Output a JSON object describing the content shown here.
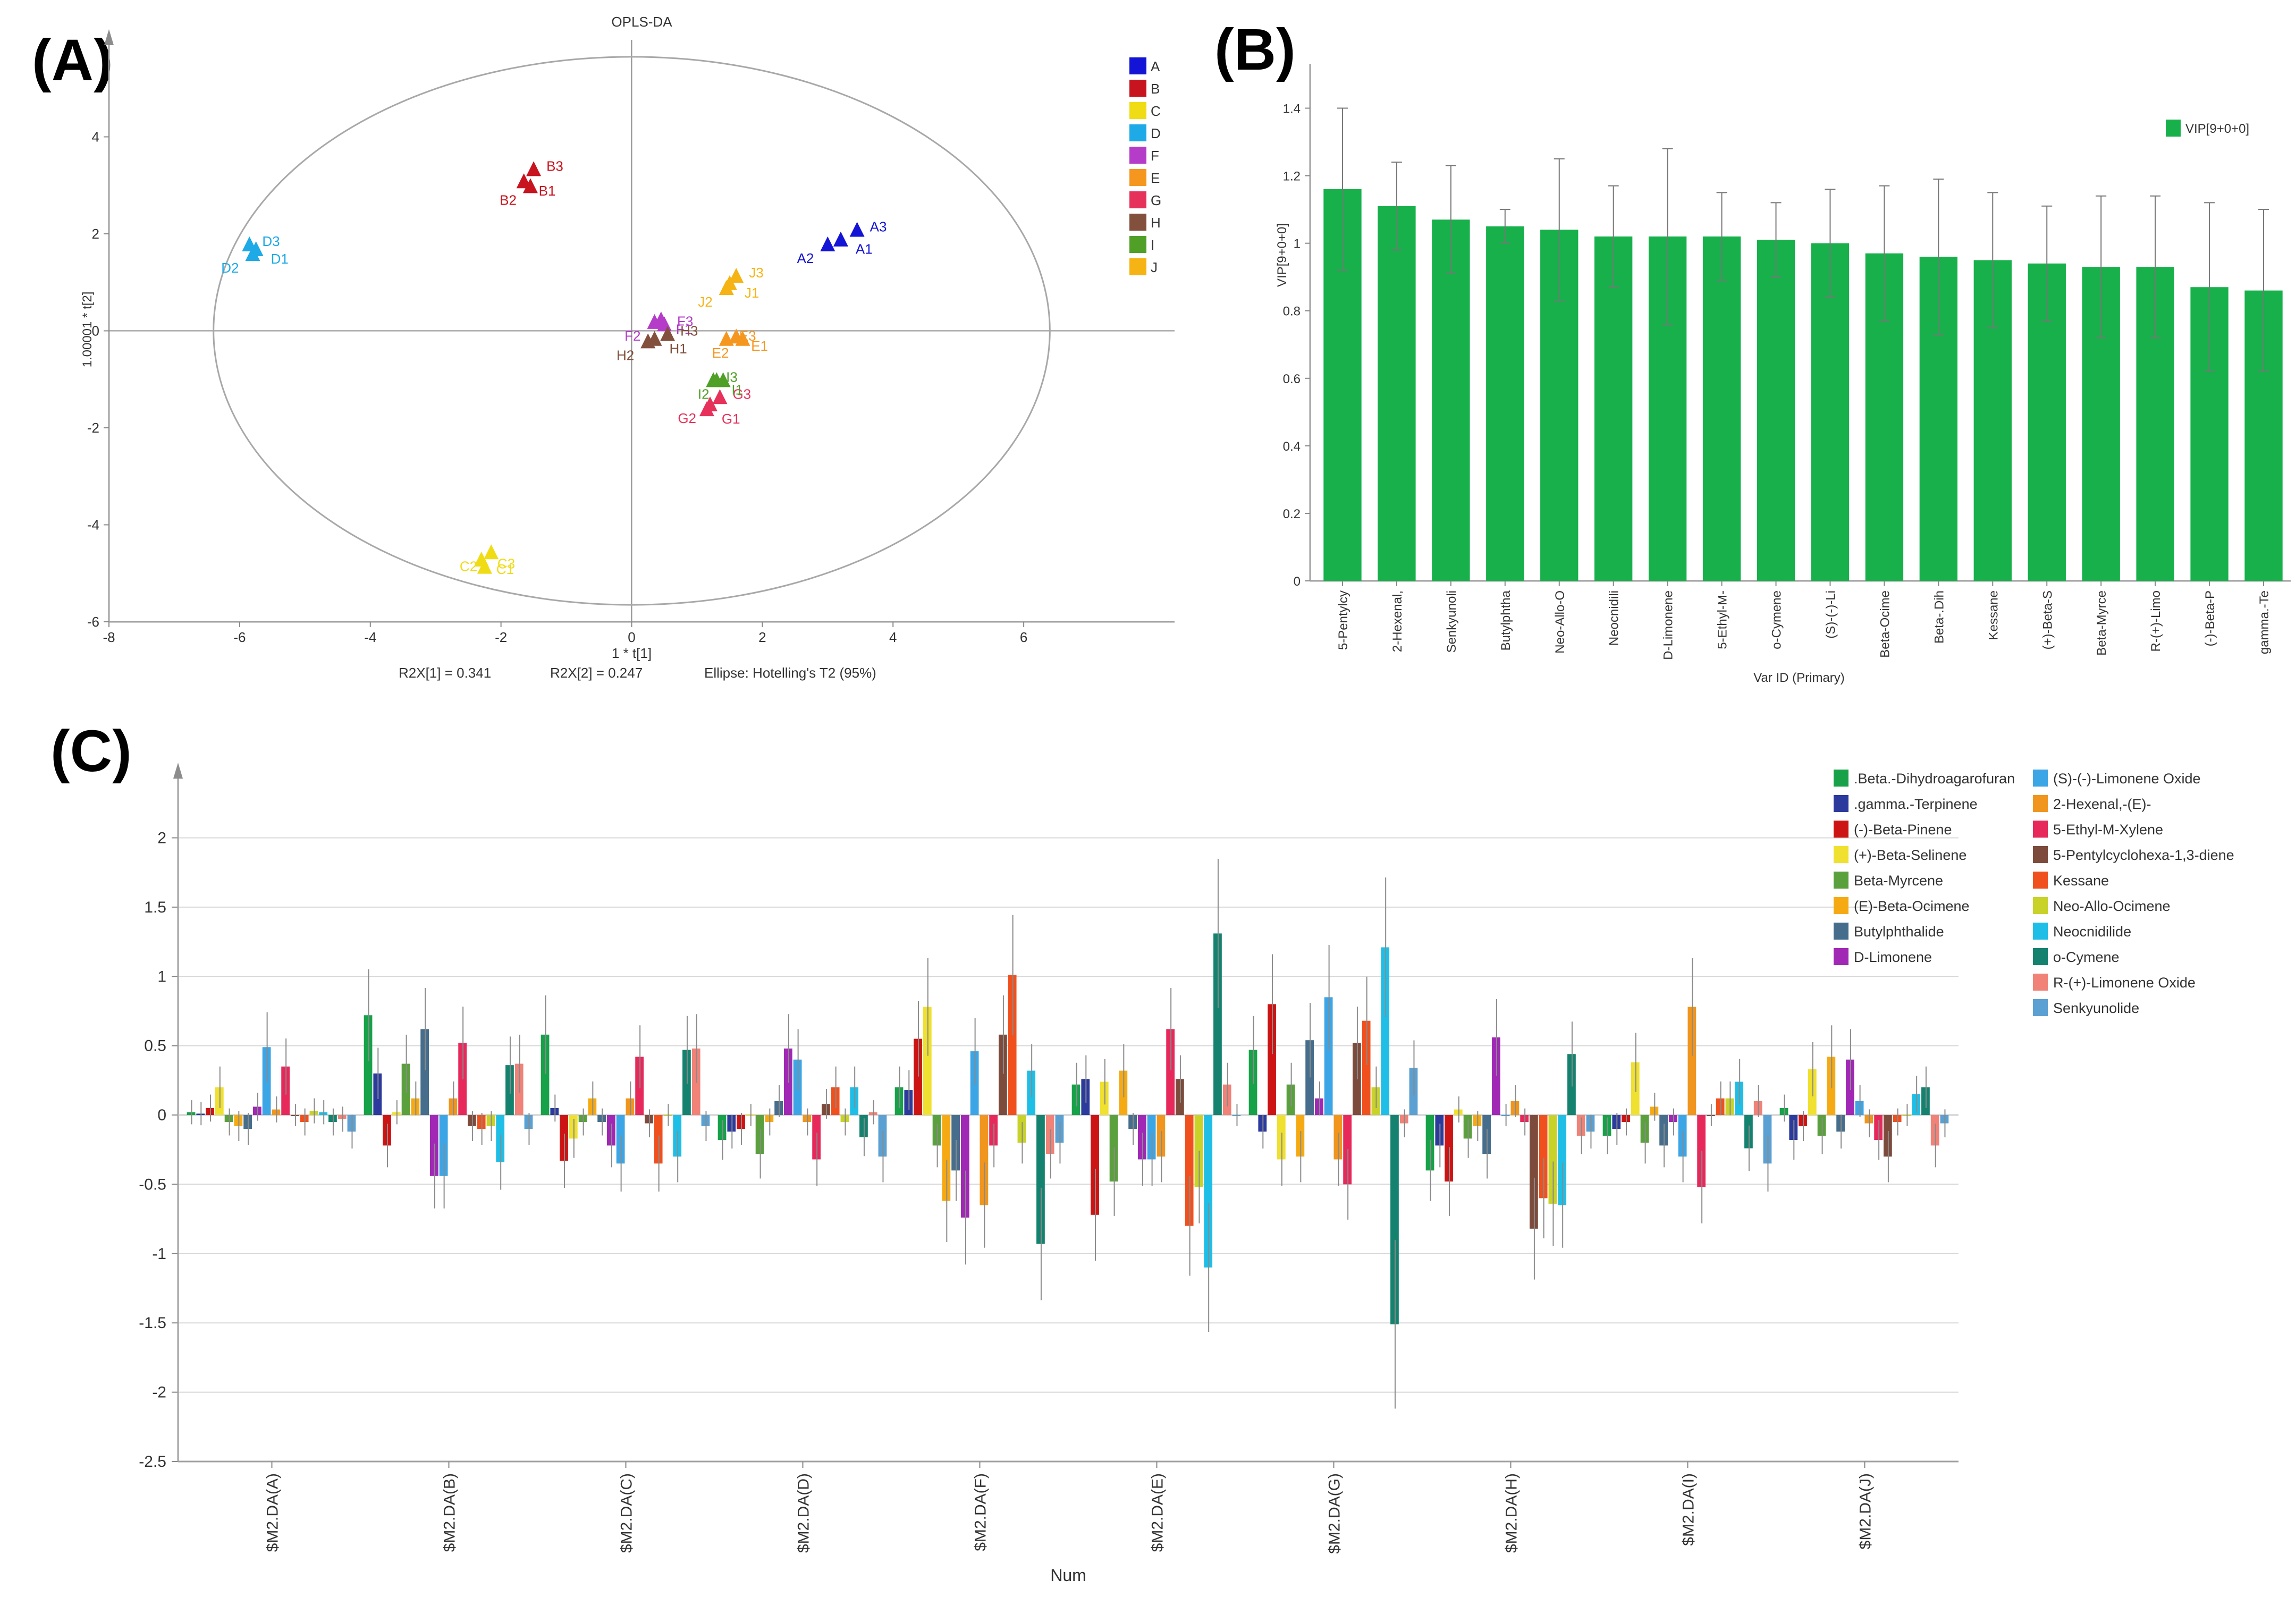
{
  "panels": {
    "a": "(A)",
    "b": "(B)",
    "c": "(C)"
  },
  "chart_data": [
    {
      "id": "A",
      "type": "scatter",
      "title": "OPLS-DA",
      "xlabel": "1 * t[1]",
      "ylabel": "1.00001 * t[2]",
      "xlim": [
        -8,
        8
      ],
      "ylim": [
        -6,
        6
      ],
      "xticks": [
        "-8",
        "-6",
        "-4",
        "-2",
        "0",
        "2",
        "4",
        "6"
      ],
      "yticks": [
        "-6",
        "-4",
        "-2",
        "0",
        "2",
        "4"
      ],
      "footer": {
        "r2x1": "R2X[1] = 0.341",
        "r2x2": "R2X[2] = 0.247",
        "ellipse": "Ellipse: Hotelling's T2 (95%)"
      },
      "ellipse": {
        "cx": 0,
        "cy": 0,
        "rx": 6.4,
        "ry": 5.65
      },
      "groups": [
        {
          "name": "A",
          "color": "#1414d6",
          "points": [
            {
              "label": "A1",
              "x": 3.2,
              "y": 1.85
            },
            {
              "label": "A2",
              "x": 3.0,
              "y": 1.75
            },
            {
              "label": "A3",
              "x": 3.45,
              "y": 2.05
            }
          ]
        },
        {
          "name": "B",
          "color": "#c8141e",
          "points": [
            {
              "label": "B1",
              "x": -1.65,
              "y": 3.05
            },
            {
              "label": "B2",
              "x": -1.55,
              "y": 2.95
            },
            {
              "label": "B3",
              "x": -1.5,
              "y": 3.3
            }
          ]
        },
        {
          "name": "C",
          "color": "#f0dc14",
          "points": [
            {
              "label": "C1",
              "x": -2.3,
              "y": -4.75
            },
            {
              "label": "C2",
              "x": -2.15,
              "y": -4.6
            },
            {
              "label": "C3",
              "x": -2.25,
              "y": -4.9
            }
          ]
        },
        {
          "name": "D",
          "color": "#1eaae6",
          "points": [
            {
              "label": "D1",
              "x": -5.75,
              "y": 1.65
            },
            {
              "label": "D2",
              "x": -5.8,
              "y": 1.55
            },
            {
              "label": "D3",
              "x": -5.85,
              "y": 1.75
            }
          ]
        },
        {
          "name": "F",
          "color": "#b43cc8",
          "points": [
            {
              "label": "F1",
              "x": 0.45,
              "y": 0.2
            },
            {
              "label": "F2",
              "x": 0.35,
              "y": 0.15
            },
            {
              "label": "F3",
              "x": 0.5,
              "y": 0.1
            }
          ]
        },
        {
          "name": "E",
          "color": "#f5961e",
          "points": [
            {
              "label": "E1",
              "x": 1.6,
              "y": -0.15
            },
            {
              "label": "E2",
              "x": 1.7,
              "y": -0.2
            },
            {
              "label": "E3",
              "x": 1.45,
              "y": -0.2
            }
          ]
        },
        {
          "name": "G",
          "color": "#e6325a",
          "points": [
            {
              "label": "G1",
              "x": 1.15,
              "y": -1.65
            },
            {
              "label": "G2",
              "x": 1.2,
              "y": -1.55
            },
            {
              "label": "G3",
              "x": 1.35,
              "y": -1.4
            }
          ]
        },
        {
          "name": "H",
          "color": "#82503c",
          "points": [
            {
              "label": "H1",
              "x": 0.35,
              "y": -0.2
            },
            {
              "label": "H2",
              "x": 0.25,
              "y": -0.25
            },
            {
              "label": "H3",
              "x": 0.55,
              "y": -0.1
            }
          ]
        },
        {
          "name": "I",
          "color": "#50a028",
          "points": [
            {
              "label": "I1",
              "x": 1.3,
              "y": -1.05
            },
            {
              "label": "I2",
              "x": 1.4,
              "y": -1.05
            },
            {
              "label": "I3",
              "x": 1.25,
              "y": -1.05
            }
          ]
        },
        {
          "name": "J",
          "color": "#f5b414",
          "points": [
            {
              "label": "J1",
              "x": 1.5,
              "y": 0.95
            },
            {
              "label": "J2",
              "x": 1.45,
              "y": 0.85
            },
            {
              "label": "J3",
              "x": 1.6,
              "y": 1.1
            }
          ]
        }
      ]
    },
    {
      "id": "B",
      "type": "bar",
      "xlabel": "Var ID (Primary)",
      "ylabel": "VIP[9+0+0]",
      "legend": "VIP[9+0+0]",
      "ylim": [
        0,
        1.5
      ],
      "yticks": [
        "0",
        "0.2",
        "0.4",
        "0.6",
        "0.8",
        "1",
        "1.2",
        "1.4"
      ],
      "color": "#17b04b",
      "categories": [
        "5-Pentylcy",
        "2-Hexenal,",
        "Senkyunoli",
        "Butylphtha",
        "Neo-Allo-O",
        "Neocnidili",
        "D-Limonene",
        "5-Ethyl-M-",
        "o-Cymene",
        "(S)-(-)-Li",
        "Beta-Ocime",
        "Beta-.Dih",
        "Kessane",
        "(+)-Beta-S",
        "Beta-Myrce",
        "R-(+)-Limo",
        "(-)-Beta-P",
        "gamma.-Te"
      ],
      "values": [
        1.16,
        1.11,
        1.07,
        1.05,
        1.04,
        1.02,
        1.02,
        1.02,
        1.01,
        1.0,
        0.97,
        0.96,
        0.95,
        0.94,
        0.93,
        0.93,
        0.87,
        0.86
      ],
      "errors": [
        0.24,
        0.13,
        0.16,
        0.05,
        0.21,
        0.15,
        0.26,
        0.13,
        0.11,
        0.16,
        0.2,
        0.23,
        0.2,
        0.17,
        0.21,
        0.21,
        0.25,
        0.24
      ]
    },
    {
      "id": "C",
      "type": "bar",
      "xlabel": "Num",
      "ylim": [
        -2.5,
        2.5
      ],
      "yticks": [
        "-2.5",
        "-2",
        "-1.5",
        "-1",
        "-0.5",
        "0",
        "0.5",
        "1",
        "1.5",
        "2"
      ],
      "categories": [
        "$M2.DA(A)",
        "$M2.DA(B)",
        "$M2.DA(C)",
        "$M2.DA(D)",
        "$M2.DA(F)",
        "$M2.DA(E)",
        "$M2.DA(G)",
        "$M2.DA(H)",
        "$M2.DA(I)",
        "$M2.DA(J)"
      ],
      "series": [
        {
          "name": ".Beta.-Dihydroagarofuran",
          "color": "#17a24a",
          "values": [
            0.02,
            0.72,
            0.58,
            -0.18,
            0.2,
            0.22,
            0.47,
            -0.4,
            -0.15,
            0.05
          ]
        },
        {
          "name": ".gamma.-Terpinene",
          "color": "#2b3a9c",
          "values": [
            0.01,
            0.3,
            0.05,
            -0.12,
            0.18,
            0.26,
            -0.12,
            -0.22,
            -0.1,
            -0.18
          ]
        },
        {
          "name": "(-)-Beta-Pinene",
          "color": "#cc1414",
          "values": [
            0.05,
            -0.22,
            -0.33,
            -0.1,
            0.55,
            -0.72,
            0.8,
            -0.48,
            -0.05,
            -0.08
          ]
        },
        {
          "name": "(+)-Beta-Selinene",
          "color": "#f0e030",
          "values": [
            0.2,
            0.02,
            -0.17,
            0.0,
            0.78,
            0.24,
            -0.32,
            0.04,
            0.38,
            0.33
          ]
        },
        {
          "name": "Beta-Myrcene",
          "color": "#5aa03c",
          "values": [
            -0.05,
            0.37,
            -0.05,
            -0.28,
            -0.22,
            -0.48,
            0.22,
            -0.17,
            -0.2,
            -0.15
          ]
        },
        {
          "name": "(E)-Beta-Ocimene",
          "color": "#f5aa14",
          "values": [
            -0.08,
            0.12,
            0.12,
            -0.05,
            -0.62,
            0.32,
            -0.3,
            -0.08,
            0.06,
            0.42
          ]
        },
        {
          "name": "Butylphthalide",
          "color": "#466e8c",
          "values": [
            -0.1,
            0.62,
            -0.05,
            0.1,
            -0.4,
            -0.1,
            0.54,
            -0.28,
            -0.22,
            -0.12
          ]
        },
        {
          "name": "D-Limonene",
          "color": "#a028b4",
          "values": [
            0.06,
            -0.44,
            -0.22,
            0.48,
            -0.74,
            -0.32,
            0.12,
            0.56,
            -0.05,
            0.4
          ]
        },
        {
          "name": "(S)-(-)-Limonene Oxide",
          "color": "#3ca5e6",
          "values": [
            0.49,
            -0.44,
            -0.35,
            0.4,
            0.46,
            -0.32,
            0.85,
            0.0,
            -0.3,
            0.1
          ]
        },
        {
          "name": "2-Hexenal,-(E)-",
          "color": "#f0961e",
          "values": [
            0.04,
            0.12,
            0.12,
            -0.05,
            -0.65,
            -0.3,
            -0.32,
            0.1,
            0.78,
            -0.06
          ]
        },
        {
          "name": "5-Ethyl-M-Xylene",
          "color": "#e6285a",
          "values": [
            0.35,
            0.52,
            0.42,
            -0.32,
            -0.22,
            0.62,
            -0.5,
            -0.05,
            -0.52,
            -0.18
          ]
        },
        {
          "name": "5-Pentylcyclohexa-1,3-diene",
          "color": "#7d4b3c",
          "values": [
            0.0,
            -0.08,
            -0.06,
            0.08,
            0.58,
            0.26,
            0.52,
            -0.82,
            0.0,
            -0.3
          ]
        },
        {
          "name": "Kessane",
          "color": "#f0501e",
          "values": [
            -0.05,
            -0.1,
            -0.35,
            0.2,
            1.01,
            -0.8,
            0.68,
            -0.6,
            0.12,
            -0.05
          ]
        },
        {
          "name": "Neo-Allo-Ocimene",
          "color": "#c8d228",
          "values": [
            0.03,
            -0.08,
            0.0,
            -0.05,
            -0.2,
            -0.52,
            0.2,
            -0.64,
            0.12,
            0.0
          ]
        },
        {
          "name": "Neocnidilide",
          "color": "#1ebee6",
          "values": [
            0.02,
            -0.34,
            -0.3,
            0.2,
            0.32,
            -1.1,
            1.21,
            -0.65,
            0.24,
            0.15
          ]
        },
        {
          "name": "o-Cymene",
          "color": "#14826e",
          "values": [
            -0.05,
            0.36,
            0.47,
            -0.16,
            -0.93,
            1.31,
            -1.51,
            0.44,
            -0.24,
            0.2
          ]
        },
        {
          "name": "R-(+)-Limonene Oxide",
          "color": "#f08278",
          "values": [
            -0.03,
            0.37,
            0.48,
            0.02,
            -0.28,
            0.22,
            -0.06,
            -0.15,
            0.1,
            -0.22
          ]
        },
        {
          "name": "Senkyunolide",
          "color": "#5aa0d2",
          "values": [
            -0.12,
            -0.1,
            -0.08,
            -0.3,
            -0.2,
            0.0,
            0.34,
            -0.12,
            -0.35,
            -0.06
          ]
        }
      ]
    }
  ]
}
